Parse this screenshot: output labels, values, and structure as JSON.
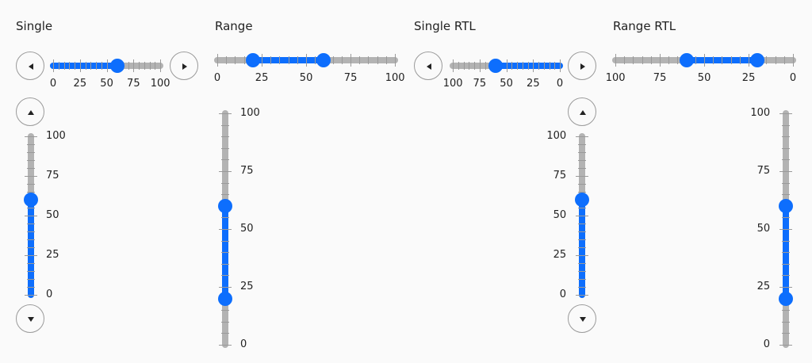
{
  "panels": {
    "single": {
      "title": "Single",
      "value": 60,
      "min": 0,
      "max": 100,
      "ticks": [
        "0",
        "25",
        "50",
        "75",
        "100"
      ]
    },
    "range": {
      "title": "Range",
      "low": 20,
      "high": 60,
      "min": 0,
      "max": 100,
      "ticks": [
        "0",
        "25",
        "50",
        "75",
        "100"
      ]
    },
    "single_rtl": {
      "title": "Single RTL",
      "value": 60,
      "min": 0,
      "max": 100,
      "ticks": [
        "0",
        "25",
        "50",
        "75",
        "100"
      ]
    },
    "range_rtl": {
      "title": "Range RTL",
      "low": 20,
      "high": 60,
      "min": 0,
      "max": 100,
      "ticks": [
        "0",
        "25",
        "50",
        "75",
        "100"
      ]
    }
  },
  "icons": {
    "left": "triangle-left-icon",
    "right": "triangle-right-icon",
    "up": "triangle-up-icon",
    "down": "triangle-down-icon"
  },
  "colors": {
    "accent": "#0d6efd",
    "track": "#b3b3b3"
  }
}
